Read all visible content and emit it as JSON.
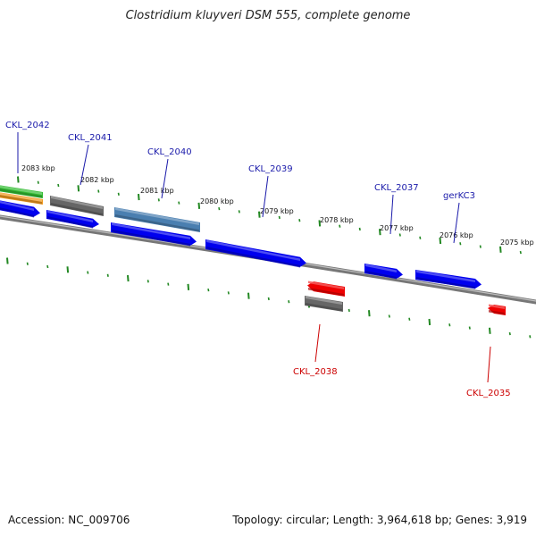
{
  "title": "Clostridium kluyveri DSM 555, complete genome",
  "footer": {
    "accession": "Accession: NC_009706",
    "summary": "Topology: circular; Length: 3,964,618 bp; Genes: 3,919"
  },
  "colors": {
    "forward_cds": "#0000ee",
    "reverse_cds": "#ee0000",
    "grey_feature": "#666666",
    "steelblue_feature": "#4a7fb0",
    "green_feature": "#33bb33",
    "orange_feature": "#f29a1e",
    "backbone": "#7a7a7a",
    "tick": "#228822",
    "forward_label": "#1a1aaa",
    "reverse_label": "#cc0000"
  },
  "kbp_labels": [
    "2083 kbp",
    "2082 kbp",
    "2081 kbp",
    "2080 kbp",
    "2079 kbp",
    "2078 kbp",
    "2077 kbp",
    "2076 kbp",
    "2075 kbp"
  ],
  "gene_labels": {
    "forward": [
      "CKL_2042",
      "CKL_2041",
      "CKL_2040",
      "CKL_2039",
      "CKL_2037",
      "gerKC3"
    ],
    "reverse": [
      "CKL_2038",
      "CKL_2035"
    ]
  }
}
